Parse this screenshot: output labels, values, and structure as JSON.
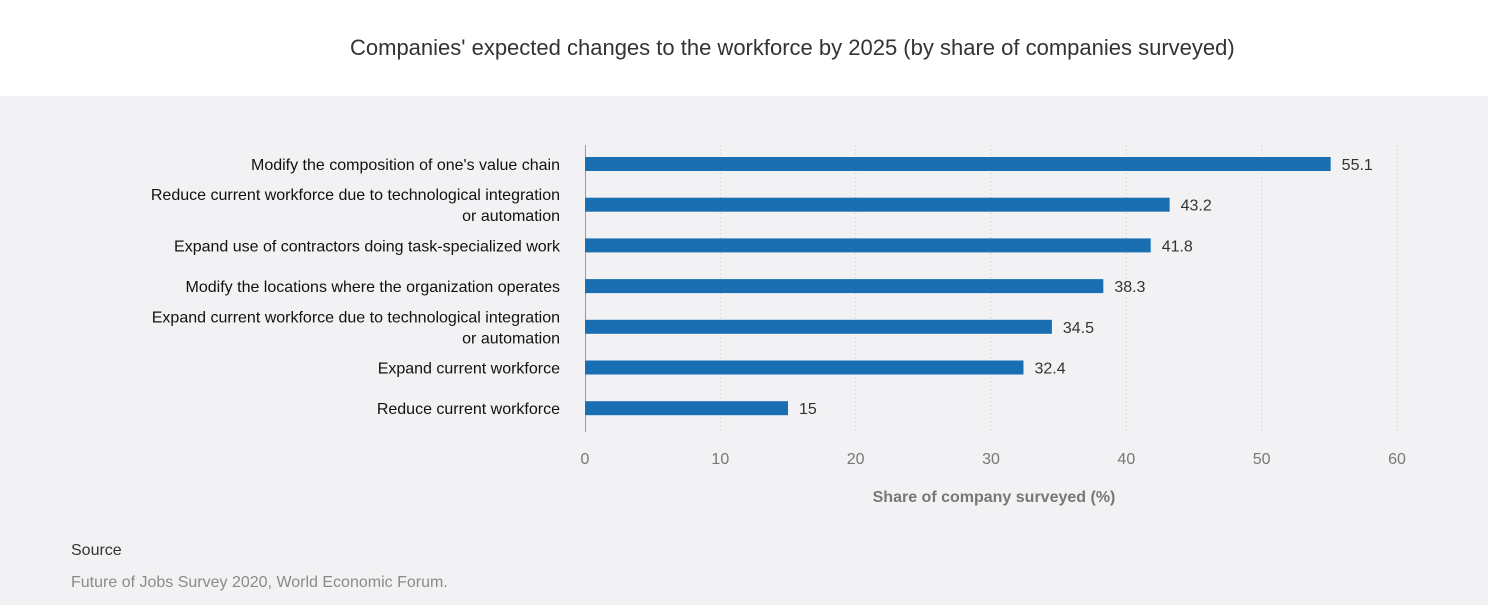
{
  "title": "Companies' expected changes to the workforce by 2025 (by share of companies surveyed)",
  "source": {
    "label": "Source",
    "text": "Future of Jobs Survey 2020, World Economic Forum."
  },
  "colors": {
    "bar": "#1a6fb3",
    "panel_bg": "#f2f2f4",
    "text": "#333333",
    "muted": "#8a8a8a"
  },
  "chart_data": {
    "type": "bar",
    "orientation": "horizontal",
    "categories": [
      [
        "Modify the composition of one's  value chain"
      ],
      [
        "Reduce current workforce due to technological integration",
        "or automation"
      ],
      [
        "Expand use of contractors doing task-specialized work"
      ],
      [
        "Modify the locations where the organization operates"
      ],
      [
        "Expand current workforce due to technological integration",
        "or automation"
      ],
      [
        "Expand current workforce"
      ],
      [
        "Reduce current workforce"
      ]
    ],
    "values": [
      55.1,
      43.2,
      41.8,
      38.3,
      34.5,
      32.4,
      15
    ],
    "value_labels": [
      "55.1",
      "43.2",
      "41.8",
      "38.3",
      "34.5",
      "32.4",
      "15"
    ],
    "xlabel": "Share of company surveyed (%)",
    "xlim": [
      0,
      60
    ],
    "xticks": [
      0,
      10,
      20,
      30,
      40,
      50,
      60
    ],
    "xtick_labels": [
      "0",
      "10",
      "20",
      "30",
      "40",
      "50",
      "60"
    ],
    "grid": "vertical dotted"
  }
}
